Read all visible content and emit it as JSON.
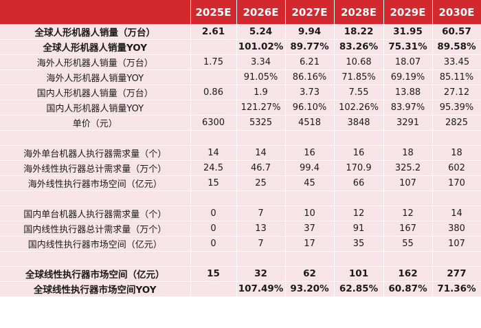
{
  "headers": [
    "",
    "2025E",
    "2026E",
    "2027E",
    "2028E",
    "2029E",
    "2030E"
  ],
  "rows": [
    {
      "bold": true,
      "cells": [
        "全球人形机器人销量（万台）",
        "2.61",
        "5.24",
        "9.94",
        "18.22",
        "31.95",
        "60.57"
      ]
    },
    {
      "bold": true,
      "cells": [
        "全球人形机器人销量YOY",
        "",
        "101.02%",
        "89.77%",
        "83.26%",
        "75.31%",
        "89.58%"
      ]
    },
    {
      "bold": false,
      "cells": [
        "海外人形机器人销量（万台）",
        "1.75",
        "3.34",
        "6.21",
        "10.68",
        "18.07",
        "33.45"
      ]
    },
    {
      "bold": false,
      "cells": [
        "海外人形机器人销量YOY",
        "",
        "91.05%",
        "86.16%",
        "71.85%",
        "69.19%",
        "85.11%"
      ]
    },
    {
      "bold": false,
      "cells": [
        "国内人形机器人销量（万台）",
        "0.86",
        "1.9",
        "3.73",
        "7.55",
        "13.88",
        "27.12"
      ]
    },
    {
      "bold": false,
      "cells": [
        "国内人形机器人销量YOY",
        "",
        "121.27%",
        "96.10%",
        "102.26%",
        "83.97%",
        "95.39%"
      ]
    },
    {
      "bold": false,
      "cells": [
        "单价（元）",
        "6300",
        "5325",
        "4518",
        "3848",
        "3291",
        "2825"
      ]
    },
    {
      "bold": false,
      "spacer": true,
      "cells": [
        "",
        "",
        "",
        "",
        "",
        "",
        ""
      ]
    },
    {
      "bold": false,
      "cells": [
        "海外单台机器人执行器需求量（个）",
        "14",
        "14",
        "16",
        "16",
        "18",
        "18"
      ]
    },
    {
      "bold": false,
      "cells": [
        "海外线性执行器总计需求量（万个）",
        "24.5",
        "46.7",
        "99.4",
        "170.9",
        "325.2",
        "602"
      ]
    },
    {
      "bold": false,
      "cells": [
        "海外线性执行器市场空间（亿元）",
        "15",
        "25",
        "45",
        "66",
        "107",
        "170"
      ]
    },
    {
      "bold": false,
      "spacer": true,
      "cells": [
        "",
        "",
        "",
        "",
        "",
        "",
        ""
      ]
    },
    {
      "bold": false,
      "cells": [
        "国内单台机器人执行器需求量（个）",
        "0",
        "7",
        "10",
        "12",
        "12",
        "14"
      ]
    },
    {
      "bold": false,
      "cells": [
        "国内线性执行器总计需求量（万个）",
        "0",
        "13",
        "37",
        "91",
        "167",
        "380"
      ]
    },
    {
      "bold": false,
      "cells": [
        "国内线性执行器市场空间（亿元）",
        "0",
        "7",
        "17",
        "35",
        "55",
        "107"
      ]
    },
    {
      "bold": false,
      "spacer": true,
      "cells": [
        "",
        "",
        "",
        "",
        "",
        "",
        ""
      ]
    },
    {
      "bold": true,
      "cells": [
        "全球线性执行器市场空间（亿元）",
        "15",
        "32",
        "62",
        "101",
        "162",
        "277"
      ]
    },
    {
      "bold": true,
      "cells": [
        "全球线性执行器市场空间YOY",
        "",
        "107.49%",
        "93.20%",
        "62.85%",
        "60.87%",
        "71.36%"
      ]
    }
  ]
}
